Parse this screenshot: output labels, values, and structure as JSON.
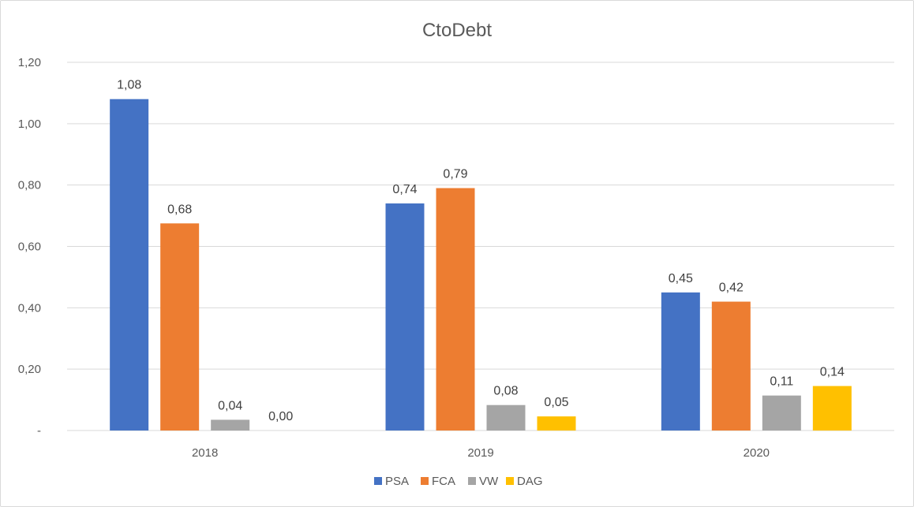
{
  "chart_data": {
    "type": "bar",
    "title": "CtoDebt",
    "xlabel": "",
    "ylabel": "",
    "categories": [
      "2018",
      "2019",
      "2020"
    ],
    "ylim": [
      0,
      1.2
    ],
    "yticks": [
      0,
      0.2,
      0.4,
      0.6,
      0.8,
      1.0,
      1.2
    ],
    "ytick_labels": [
      "-",
      "0,20",
      "0,40",
      "0,60",
      "0,80",
      "1,00",
      "1,20"
    ],
    "grid": true,
    "legend_position": "bottom",
    "series": [
      {
        "name": "PSA",
        "color": "#4472C4",
        "values": [
          1.08,
          0.74,
          0.45
        ],
        "labels": [
          "1,08",
          "0,74",
          "0,45"
        ]
      },
      {
        "name": "FCA",
        "color": "#ED7D31",
        "values": [
          0.675,
          0.79,
          0.42
        ],
        "labels": [
          "0,68",
          "0,79",
          "0,42"
        ]
      },
      {
        "name": "VW",
        "color": "#A5A5A5",
        "values": [
          0.035,
          0.083,
          0.114
        ],
        "labels": [
          "0,04",
          "0,08",
          "0,11"
        ]
      },
      {
        "name": "DAG",
        "color": "#FFC000",
        "values": [
          0.0,
          0.046,
          0.145
        ],
        "labels": [
          "0,00",
          "0,05",
          "0,14"
        ]
      }
    ]
  }
}
